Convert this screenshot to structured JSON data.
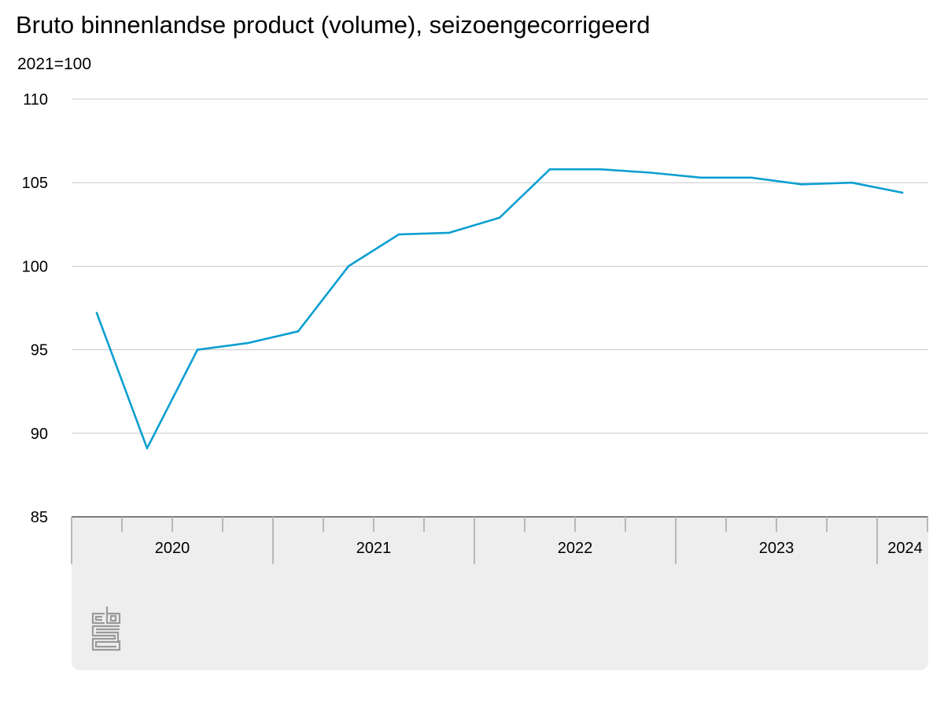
{
  "chart_data": {
    "type": "line",
    "title": "Bruto binnenlandse product (volume), seizoengecorrigeerd",
    "subtitle": "2021=100",
    "xlabel": "",
    "ylabel": "",
    "ylim": [
      85,
      110
    ],
    "yticks": [
      "110",
      "105",
      "100",
      "95",
      "90",
      "85"
    ],
    "grid": true,
    "years": [
      "2020",
      "2021",
      "2022",
      "2023",
      "2024"
    ],
    "x": [
      "2020-Q1",
      "2020-Q2",
      "2020-Q3",
      "2020-Q4",
      "2021-Q1",
      "2021-Q2",
      "2021-Q3",
      "2021-Q4",
      "2022-Q1",
      "2022-Q2",
      "2022-Q3",
      "2022-Q4",
      "2023-Q1",
      "2023-Q2",
      "2023-Q3",
      "2023-Q4",
      "2024-Q1"
    ],
    "series": [
      {
        "values": [
          97.2,
          89.1,
          95.0,
          95.4,
          96.1,
          100.0,
          101.9,
          102.0,
          102.9,
          105.8,
          105.8,
          105.6,
          105.3,
          105.3,
          104.9,
          105.0,
          104.4
        ]
      }
    ],
    "colors": {
      "line": "#0d9fd1",
      "grid": "#c8c8c8",
      "axis_band": "#eeeeee",
      "axis_line": "#555555",
      "tick": "#b8b8b8"
    }
  },
  "logo": {
    "name": "cbs-logo",
    "text": "cbs"
  }
}
